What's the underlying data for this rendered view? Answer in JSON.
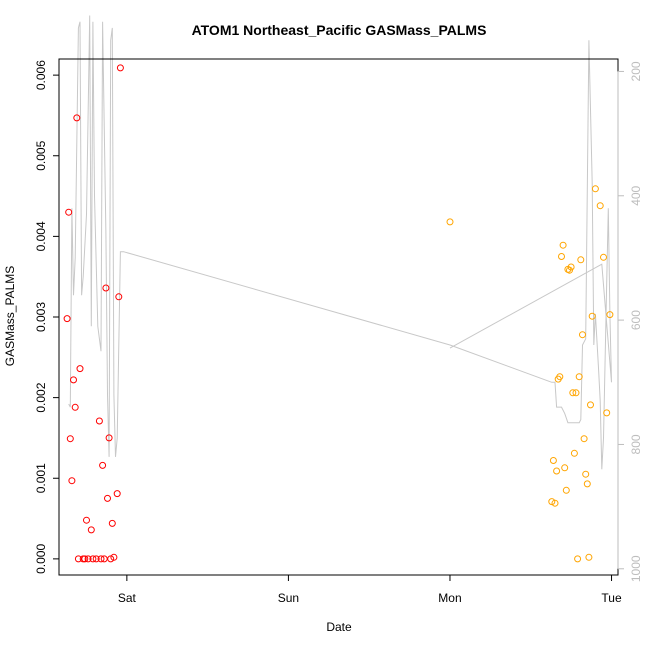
{
  "chart_data": {
    "type": "scatter",
    "title": "ATOM1 Northeast_Pacific GASMass_PALMS",
    "xlabel": "Date",
    "ylabel": "GASMass_PALMS",
    "x_ticks": [
      "Sat",
      "Sun",
      "Mon",
      "Tue"
    ],
    "x_tick_days": [
      1,
      2,
      3,
      4
    ],
    "xlim_days": [
      0.58,
      4.04
    ],
    "ylim": [
      -0.0002,
      0.0062
    ],
    "y_ticks": [
      0,
      0.001,
      0.002,
      0.003,
      0.004,
      0.005,
      0.006
    ],
    "y_tick_labels": [
      "0.000",
      "0.001",
      "0.002",
      "0.003",
      "0.004",
      "0.005",
      "0.006"
    ],
    "right_axis": {
      "ticks": [
        200,
        400,
        600,
        800,
        1000
      ],
      "tick_labels": [
        "200",
        "400",
        "600",
        "800",
        "1000"
      ],
      "lim": [
        180,
        1010
      ],
      "inverted": true,
      "color": "#bdbdbd"
    },
    "series": [
      {
        "color": "#ff0000",
        "points": [
          [
            0.63,
            0.00298
          ],
          [
            0.64,
            0.0043
          ],
          [
            0.65,
            0.00149
          ],
          [
            0.66,
            0.00097
          ],
          [
            0.67,
            0.00222
          ],
          [
            0.68,
            0.00188
          ],
          [
            0.69,
            0.00547
          ],
          [
            0.7,
            0.0
          ],
          [
            0.71,
            0.00236
          ],
          [
            0.73,
            0.0
          ],
          [
            0.74,
            0.0
          ],
          [
            0.75,
            0.00048
          ],
          [
            0.76,
            0.0
          ],
          [
            0.78,
            0.00036
          ],
          [
            0.79,
            0.0
          ],
          [
            0.81,
            0.0
          ],
          [
            0.83,
            0.00171
          ],
          [
            0.84,
            0.0
          ],
          [
            0.85,
            0.00116
          ],
          [
            0.86,
            0.0
          ],
          [
            0.87,
            0.00336
          ],
          [
            0.88,
            0.00075
          ],
          [
            0.89,
            0.0015
          ],
          [
            0.9,
            0.0
          ],
          [
            0.91,
            0.00044
          ],
          [
            0.92,
            2e-05
          ],
          [
            0.94,
            0.00081
          ],
          [
            0.95,
            0.00325
          ],
          [
            0.96,
            0.00609
          ]
        ]
      },
      {
        "color": "#ffa500",
        "points": [
          [
            3.0,
            0.00418
          ],
          [
            3.63,
            0.00071
          ],
          [
            3.64,
            0.00122
          ],
          [
            3.65,
            0.00069
          ],
          [
            3.66,
            0.00109
          ],
          [
            3.67,
            0.00223
          ],
          [
            3.68,
            0.00226
          ],
          [
            3.69,
            0.00375
          ],
          [
            3.7,
            0.00389
          ],
          [
            3.71,
            0.00113
          ],
          [
            3.72,
            0.00085
          ],
          [
            3.73,
            0.00359
          ],
          [
            3.74,
            0.00358
          ],
          [
            3.75,
            0.00362
          ],
          [
            3.76,
            0.00206
          ],
          [
            3.77,
            0.00131
          ],
          [
            3.78,
            0.00206
          ],
          [
            3.79,
            0.0
          ],
          [
            3.8,
            0.00226
          ],
          [
            3.81,
            0.00371
          ],
          [
            3.82,
            0.00278
          ],
          [
            3.83,
            0.00149
          ],
          [
            3.84,
            0.00105
          ],
          [
            3.85,
            0.00093
          ],
          [
            3.86,
            2e-05
          ],
          [
            3.87,
            0.00191
          ],
          [
            3.88,
            0.00301
          ],
          [
            3.9,
            0.00459
          ],
          [
            3.93,
            0.00438
          ],
          [
            3.95,
            0.00374
          ],
          [
            3.97,
            0.00181
          ],
          [
            3.99,
            0.00303
          ]
        ]
      }
    ],
    "pressure_line": {
      "color": "#c8c8c8",
      "points": [
        [
          0.64,
          735
        ],
        [
          0.65,
          740
        ],
        [
          0.66,
          420
        ],
        [
          0.67,
          560
        ],
        [
          0.68,
          500
        ],
        [
          0.7,
          130
        ],
        [
          0.71,
          120
        ],
        [
          0.72,
          560
        ],
        [
          0.73,
          530
        ],
        [
          0.75,
          430
        ],
        [
          0.77,
          110
        ],
        [
          0.78,
          610
        ],
        [
          0.79,
          120
        ],
        [
          0.8,
          400
        ],
        [
          0.82,
          610
        ],
        [
          0.84,
          650
        ],
        [
          0.85,
          120
        ],
        [
          0.87,
          460
        ],
        [
          0.88,
          720
        ],
        [
          0.89,
          820
        ],
        [
          0.9,
          150
        ],
        [
          0.91,
          130
        ],
        [
          0.92,
          720
        ],
        [
          0.93,
          820
        ],
        [
          0.94,
          790
        ],
        [
          0.96,
          490
        ],
        [
          0.98,
          490
        ],
        [
          3.0,
          640
        ],
        [
          3.63,
          700
        ],
        [
          3.65,
          700
        ],
        [
          3.66,
          740
        ],
        [
          3.68,
          740
        ],
        [
          3.69,
          740
        ],
        [
          3.71,
          750
        ],
        [
          3.73,
          765
        ],
        [
          3.75,
          765
        ],
        [
          3.78,
          765
        ],
        [
          3.8,
          765
        ],
        [
          3.81,
          760
        ],
        [
          3.82,
          640
        ],
        [
          3.84,
          630
        ],
        [
          3.86,
          150
        ],
        [
          3.88,
          380
        ],
        [
          3.89,
          640
        ],
        [
          3.9,
          590
        ],
        [
          3.92,
          680
        ],
        [
          3.93,
          730
        ],
        [
          3.94,
          840
        ],
        [
          3.95,
          790
        ],
        [
          3.97,
          540
        ],
        [
          3.98,
          420
        ],
        [
          3.99,
          590
        ],
        [
          4.0,
          700
        ],
        [
          3.94,
          510
        ],
        [
          3.0,
          645
        ]
      ]
    }
  }
}
